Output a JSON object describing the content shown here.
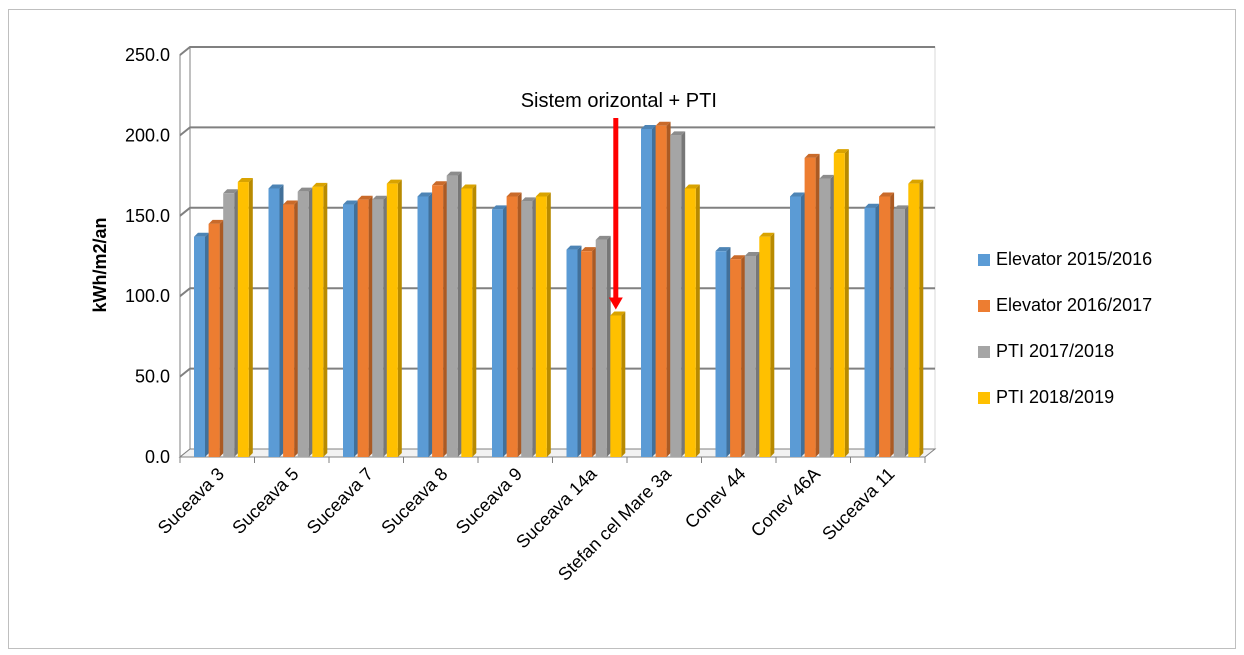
{
  "chart_data": {
    "type": "bar",
    "title": "",
    "xlabel": "",
    "ylabel": "kWh/m2/an",
    "ylim": [
      0,
      250
    ],
    "yticks": [
      "0.0",
      "50.0",
      "100.0",
      "150.0",
      "200.0",
      "250.0"
    ],
    "grid": true,
    "legend_position": "right",
    "categories": [
      "Suceava 3",
      "Suceava 5",
      "Suceava 7",
      "Suceava 8",
      "Suceava 9",
      "Suceava 14a",
      "Stefan cel Mare 3a",
      "Conev 44",
      "Conev 46A",
      "Suceava 11"
    ],
    "series": [
      {
        "name": "Elevator 2015/2016",
        "color": "#5b9bd5",
        "values": [
          137,
          167,
          157,
          162,
          154,
          129,
          204,
          128,
          162,
          155
        ]
      },
      {
        "name": "Elevator 2016/2017",
        "color": "#ed7d31",
        "values": [
          145,
          157,
          160,
          169,
          162,
          128,
          206,
          123,
          186,
          162
        ]
      },
      {
        "name": "PTI 2017/2018",
        "color": "#a5a5a5",
        "values": [
          164,
          165,
          160,
          175,
          159,
          135,
          200,
          125,
          173,
          154
        ]
      },
      {
        "name": "PTI 2018/2019",
        "color": "#ffc000",
        "values": [
          171,
          168,
          170,
          167,
          162,
          88,
          167,
          137,
          189,
          170
        ]
      }
    ],
    "annotation": {
      "text": "Sistem orizontal + PTI",
      "arrow_color": "#ff0000",
      "target_category": "Suceava 14a",
      "target_series": "PTI 2018/2019"
    }
  }
}
